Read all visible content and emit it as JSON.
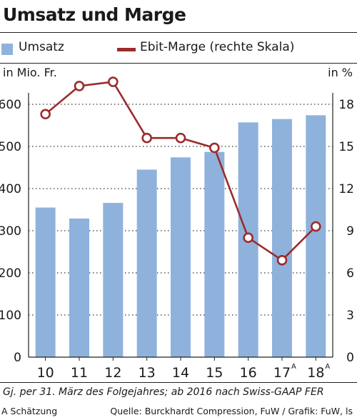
{
  "title": "Umsatz und Marge",
  "legend": {
    "bar_label": "Umsatz",
    "line_label": "Ebit-Marge (rechte Skala)"
  },
  "axis": {
    "left_unit": "in Mio. Fr.",
    "right_unit": "in %"
  },
  "footnote": "Gj. per 31. März des Folgejahres; ab 2016 nach Swiss-GAAP FER",
  "estimate_note": "A Schätzung",
  "source": "Quelle:  Burckhardt Compression, FuW / Grafik: FuW, ls",
  "colors": {
    "bar": "#8fb2dc",
    "line": "#9b2c2e",
    "text": "#1a1a1a"
  },
  "chart_data": {
    "type": "bar",
    "categories": [
      "10",
      "11",
      "12",
      "13",
      "14",
      "15",
      "16",
      "17",
      "18"
    ],
    "category_superscripts": [
      "",
      "",
      "",
      "",
      "",
      "",
      "",
      "A",
      "A"
    ],
    "series": [
      {
        "name": "Umsatz",
        "type": "bar",
        "axis": "left",
        "values": [
          355,
          329,
          366,
          445,
          474,
          487,
          557,
          565,
          574
        ]
      },
      {
        "name": "Ebit-Marge (rechte Skala)",
        "type": "line",
        "axis": "right",
        "values": [
          17.3,
          19.3,
          19.6,
          15.6,
          15.6,
          14.9,
          8.5,
          6.9,
          9.3
        ]
      }
    ],
    "ylim_left": [
      0,
      600
    ],
    "yticks_left": [
      0,
      100,
      200,
      300,
      400,
      500,
      600
    ],
    "ylim_right": [
      0,
      18
    ],
    "yticks_right": [
      0,
      3,
      6,
      9,
      12,
      15,
      18
    ],
    "ylabel_left": "in Mio. Fr.",
    "ylabel_right": "in %",
    "grid": "dotted horizontal"
  }
}
